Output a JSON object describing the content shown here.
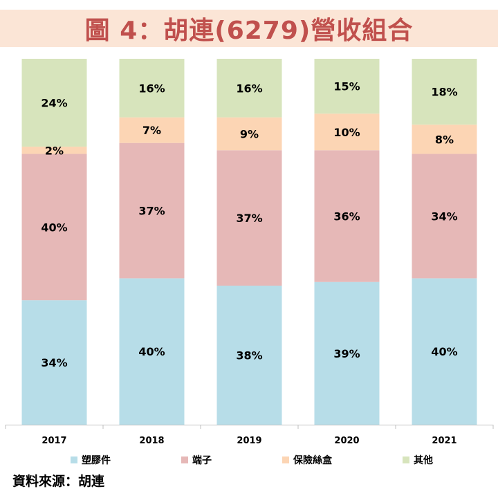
{
  "title": "圖 4：胡連(6279)營收組合",
  "source": "資料來源：胡連",
  "chart_data": {
    "type": "bar",
    "stacked": true,
    "normalized": true,
    "title": "圖 4：胡連(6279)營收組合",
    "categories": [
      "2017",
      "2018",
      "2019",
      "2020",
      "2021"
    ],
    "series": [
      {
        "name": "塑膠件",
        "color": "#b7dde8",
        "values": [
          34,
          40,
          38,
          39,
          40
        ]
      },
      {
        "name": "端子",
        "color": "#e6b8b7",
        "values": [
          40,
          37,
          37,
          36,
          34
        ]
      },
      {
        "name": "保險絲盒",
        "color": "#fcd5b4",
        "values": [
          2,
          7,
          9,
          10,
          8
        ]
      },
      {
        "name": "其他",
        "color": "#d7e4bc",
        "values": [
          24,
          16,
          16,
          15,
          18
        ]
      }
    ],
    "unit": "%",
    "ylim": [
      0,
      100
    ],
    "grid": false,
    "legend": "bottom"
  }
}
